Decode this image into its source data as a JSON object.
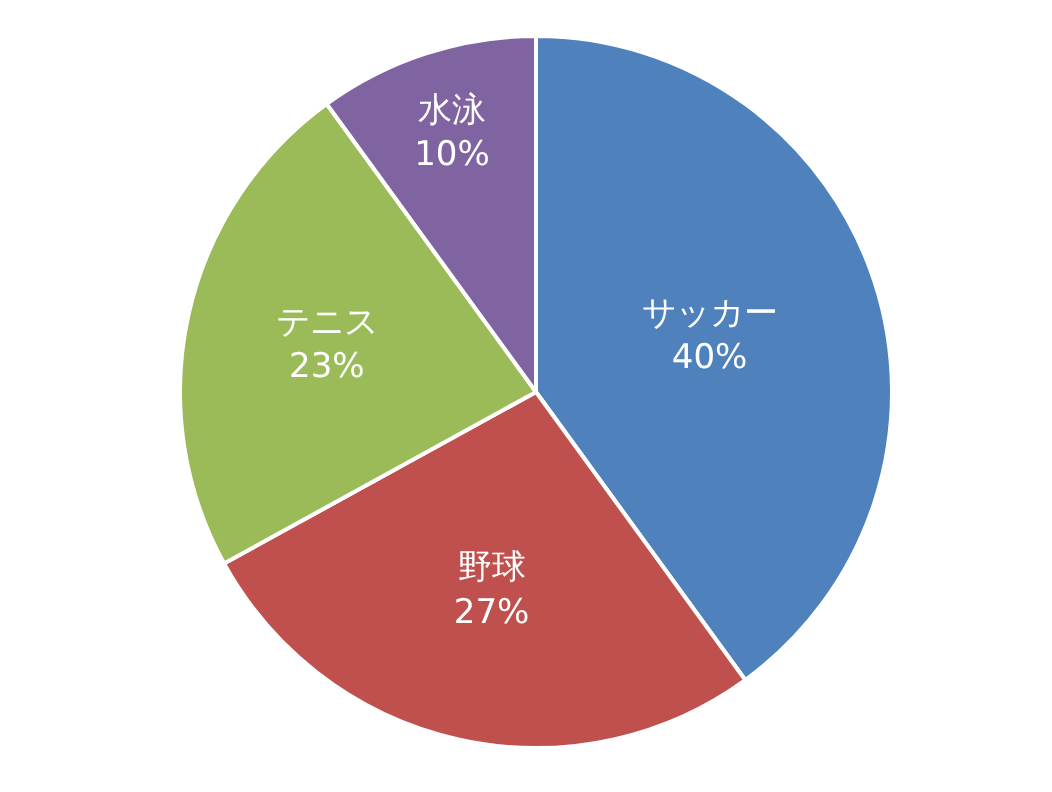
{
  "chart_data": {
    "type": "pie",
    "categories": [
      "サッカー",
      "野球",
      "テニス",
      "水泳"
    ],
    "values": [
      40,
      27,
      23,
      10
    ],
    "value_labels": [
      "40%",
      "27%",
      "23%",
      "10%"
    ],
    "colors": [
      "#4f81bd",
      "#c0504d",
      "#9bbb59",
      "#8064a2"
    ],
    "legend": false
  }
}
